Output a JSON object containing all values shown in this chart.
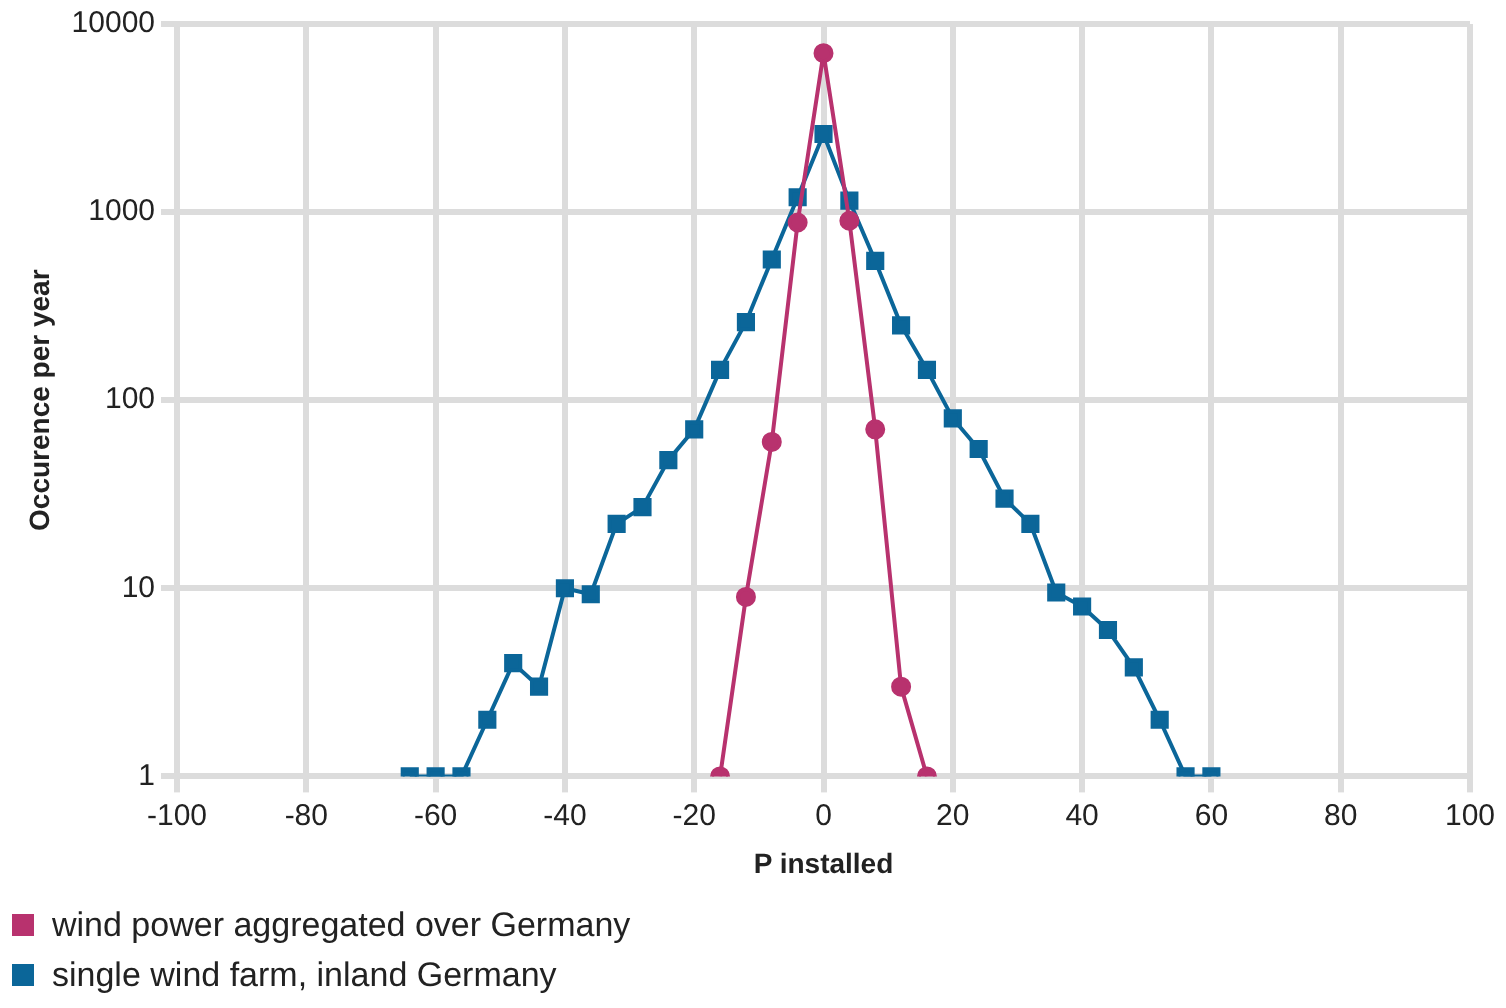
{
  "chart_data": {
    "type": "line",
    "xlabel": "P installed",
    "ylabel": "Occurence per year",
    "log": "y",
    "grid": true,
    "legend": "bottom left",
    "xlim": [
      -100,
      100
    ],
    "xticks": [
      -100,
      -80,
      -60,
      -40,
      -20,
      0,
      20,
      40,
      60,
      80,
      100
    ],
    "ylim": [
      1,
      10000
    ],
    "yticks": [
      1,
      10,
      100,
      1000,
      10000
    ],
    "series": [
      {
        "name": "wind power aggregated over Germany",
        "color": "#b8326e",
        "marker": "circle",
        "x": [
          -16,
          -12,
          -8,
          -4,
          0,
          4,
          8,
          12,
          16
        ],
        "values": [
          1,
          9,
          60,
          880,
          7000,
          900,
          70,
          3,
          1
        ]
      },
      {
        "name": "single wind farm, inland Germany",
        "color": "#0b6699",
        "marker": "square",
        "x": [
          -64,
          -60,
          -56,
          -52,
          -48,
          -44,
          -40,
          -36,
          -32,
          -28,
          -24,
          -20,
          -16,
          -12,
          -8,
          -4,
          0,
          4,
          8,
          12,
          16,
          20,
          24,
          28,
          32,
          36,
          40,
          44,
          48,
          52,
          56,
          60
        ],
        "values": [
          1,
          1,
          1,
          2,
          4,
          3,
          10,
          9.3,
          22,
          27,
          48,
          70,
          145,
          260,
          560,
          1200,
          2600,
          1150,
          550,
          250,
          145,
          80,
          55,
          30,
          22,
          9.5,
          8,
          6,
          3.8,
          2,
          1,
          1
        ]
      }
    ]
  }
}
